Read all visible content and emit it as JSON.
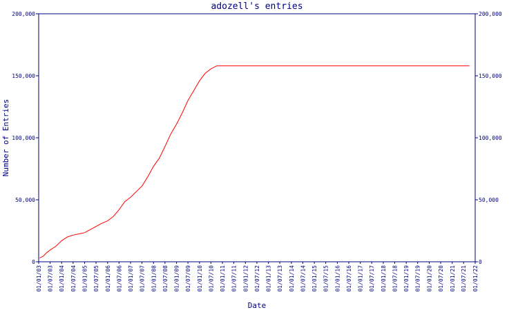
{
  "chart_data": {
    "type": "line",
    "title": "adozell's entries",
    "xlabel": "Date",
    "ylabel": "Number of Entries",
    "ylim": [
      0,
      200000
    ],
    "y_ticks": [
      0,
      50000,
      100000,
      150000,
      200000
    ],
    "y_tick_labels": [
      "0",
      "50,000",
      "100,000",
      "150,000",
      "200,000"
    ],
    "x_tick_labels": [
      "01/01/03",
      "01/07/03",
      "01/01/04",
      "01/07/04",
      "01/01/05",
      "01/07/05",
      "01/01/06",
      "01/07/06",
      "01/01/07",
      "01/07/07",
      "01/01/08",
      "01/07/08",
      "01/01/09",
      "01/07/09",
      "01/01/10",
      "01/07/10",
      "01/01/11",
      "01/07/11",
      "01/01/12",
      "01/07/12",
      "01/01/13",
      "01/07/13",
      "01/01/14",
      "01/07/14",
      "01/01/15",
      "01/07/15",
      "01/01/16",
      "01/07/16",
      "01/01/17",
      "01/07/17",
      "01/01/18",
      "01/07/18",
      "01/01/19",
      "01/07/19",
      "01/01/20",
      "01/07/20",
      "01/01/21",
      "01/07/21",
      "01/01/22"
    ],
    "grid": false,
    "colors": {
      "axis": "#000080",
      "series": "#ff0000"
    },
    "series": [
      {
        "values": [
          [
            "2003-01-15",
            3000
          ],
          [
            "2003-03-15",
            4500
          ],
          [
            "2003-05-01",
            7000
          ],
          [
            "2003-07-01",
            9500
          ],
          [
            "2003-10-01",
            12500
          ],
          [
            "2004-01-01",
            17000
          ],
          [
            "2004-04-01",
            20000
          ],
          [
            "2004-07-01",
            21500
          ],
          [
            "2004-10-01",
            22500
          ],
          [
            "2005-01-01",
            23500
          ],
          [
            "2005-04-01",
            26000
          ],
          [
            "2005-07-01",
            28500
          ],
          [
            "2005-10-01",
            31000
          ],
          [
            "2006-01-01",
            33000
          ],
          [
            "2006-04-01",
            36500
          ],
          [
            "2006-07-01",
            42000
          ],
          [
            "2006-10-01",
            48500
          ],
          [
            "2007-01-01",
            52000
          ],
          [
            "2007-04-01",
            56500
          ],
          [
            "2007-07-01",
            61000
          ],
          [
            "2007-10-01",
            68500
          ],
          [
            "2008-01-01",
            77000
          ],
          [
            "2008-04-01",
            83500
          ],
          [
            "2008-07-01",
            93000
          ],
          [
            "2008-10-01",
            103000
          ],
          [
            "2009-01-01",
            111000
          ],
          [
            "2009-04-01",
            120000
          ],
          [
            "2009-07-01",
            130000
          ],
          [
            "2009-10-01",
            138000
          ],
          [
            "2010-01-01",
            146000
          ],
          [
            "2010-04-01",
            152000
          ],
          [
            "2010-07-01",
            155500
          ],
          [
            "2010-10-01",
            158000
          ],
          [
            "2021-10-01",
            158000
          ]
        ]
      }
    ]
  }
}
